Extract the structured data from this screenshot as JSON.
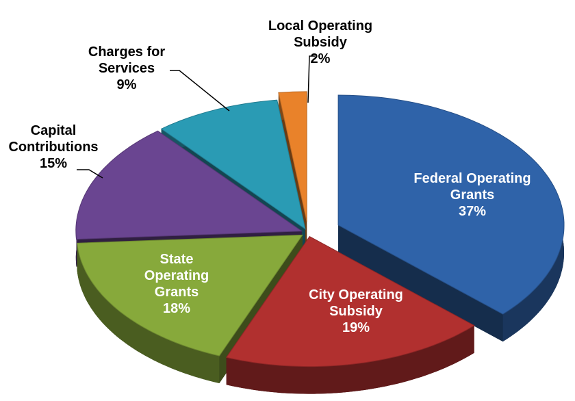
{
  "chart_data": {
    "type": "pie",
    "categories": [
      "Federal Operating Grants",
      "City Operating Subsidy",
      "State Operating Grants",
      "Capital Contributions",
      "Charges for Services",
      "Local Operating Subsidy"
    ],
    "values": [
      37,
      19,
      18,
      15,
      9,
      2
    ],
    "value_labels": [
      "37%",
      "19%",
      "18%",
      "15%",
      "9%",
      "2%"
    ],
    "colors": [
      "#2f63a9",
      "#b1302f",
      "#87a93b",
      "#6a4591",
      "#2a9bb4",
      "#e9822a"
    ]
  }
}
